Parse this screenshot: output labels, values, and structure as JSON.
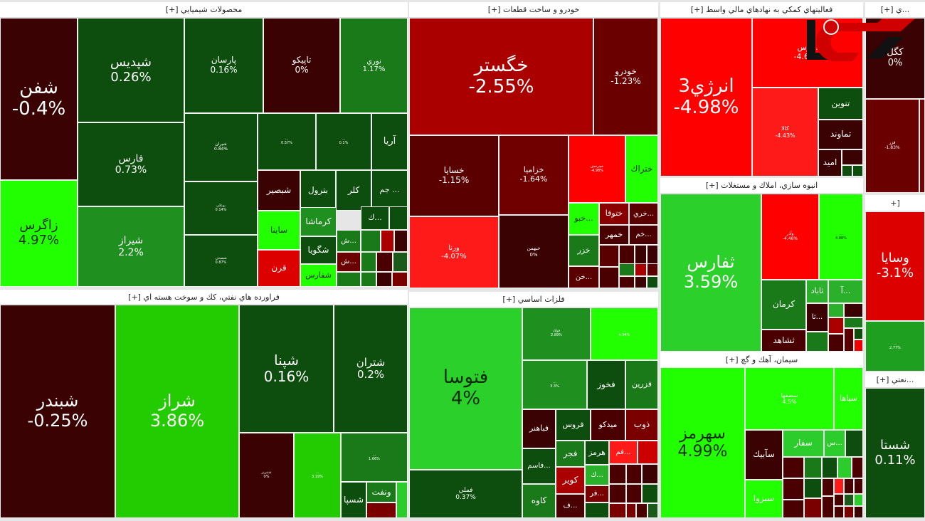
{
  "sectors": [
    {
      "title": "محصولات شيميايي [+]"
    },
    {
      "title": "خودرو و ساخت قطعات [+]"
    },
    {
      "title": "فعاليتهاي كمكي به نهادهاي مالي واسط [+]"
    },
    {
      "title": "انبوه سازي، املاك و مستغلات [+]"
    },
    {
      "title": "سيمان، آهك و گچ [+]"
    },
    {
      "title": "...ي [+]"
    },
    {
      "title": "[+"
    },
    {
      "title": "...نعتي [+]"
    },
    {
      "title": "فراورده هاي نفتي، كك و سوخت هسته اي [+]"
    },
    {
      "title": "فلزات اساسي [+]"
    }
  ],
  "colors": {
    "strong_up": "#22ff00",
    "up": "#1f8f1f",
    "flat_up": "#0d4d0d",
    "flat_down": "#3a0000",
    "down": "#aa0000",
    "strong_down": "#ff0000"
  },
  "tiles": [
    {
      "symbol": "شفن",
      "change": "-0.4%",
      "color": "#3a0202"
    },
    {
      "symbol": "زاگرس",
      "change": "4.97%",
      "color": "#22ff00"
    },
    {
      "symbol": "شپديس",
      "change": "0.26%",
      "color": "#0d4d0d"
    },
    {
      "symbol": "فارس",
      "change": "0.73%",
      "color": "#0d4d0d"
    },
    {
      "symbol": "شيراز",
      "change": "2.2%",
      "color": "#1f8f1f"
    },
    {
      "symbol": "پارسان",
      "change": "0.16%",
      "color": "#0d4d0d"
    },
    {
      "symbol": "تاپيكو",
      "change": "0%",
      "color": "#3a0202"
    },
    {
      "symbol": "نوري",
      "change": "1.17%",
      "color": "#1a7a1a"
    },
    {
      "symbol": "شيران",
      "change": "0.84%",
      "color": "#0d4d0d"
    },
    {
      "symbol": "بوعلي",
      "change": "0.14%",
      "color": "#0d4d0d"
    },
    {
      "symbol": "شصدف",
      "change": "0.87%",
      "color": "#0d4d0d"
    },
    {
      "symbol": "...",
      "change": "0.57%",
      "color": "#0d4d0d"
    },
    {
      "symbol": "...",
      "change": "0.1%",
      "color": "#0d4d0d"
    },
    {
      "symbol": "آريا",
      "change": "",
      "color": "#0d4d0d"
    },
    {
      "symbol": "شبصير",
      "change": "",
      "color": "#3a0202"
    },
    {
      "symbol": "بترول",
      "change": "",
      "color": "#0d4d0d"
    },
    {
      "symbol": "كلر",
      "change": "",
      "color": "#0d4d0d"
    },
    {
      "symbol": "... جم",
      "change": "",
      "color": "#0d4d0d"
    },
    {
      "symbol": "ساينا",
      "change": "",
      "color": "#22ff00"
    },
    {
      "symbol": "قرن",
      "change": "",
      "color": "#dd0000"
    },
    {
      "symbol": "كرماشا",
      "change": "",
      "color": "#1f8f1f"
    },
    {
      "symbol": "شگويا",
      "change": "",
      "color": "#0d4d0d"
    },
    {
      "symbol": "شفارس",
      "change": "",
      "color": "#22ff00"
    },
    {
      "symbol": "...ك",
      "change": "",
      "color": "#0d4d0d"
    },
    {
      "symbol": "...ش",
      "change": "",
      "color": "#1a7a1a"
    },
    {
      "symbol": "...ش",
      "change": "",
      "color": "#6a0000"
    },
    {
      "symbol": "خگستر",
      "change": "-2.55%",
      "color": "#aa0000"
    },
    {
      "symbol": "خودرو",
      "change": "-1.23%",
      "color": "#6a0000"
    },
    {
      "symbol": "خساپا",
      "change": "-1.15%",
      "color": "#5a0000"
    },
    {
      "symbol": "خزاميا",
      "change": "-1.64%",
      "color": "#700000"
    },
    {
      "symbol": "ورنا",
      "change": "-4.07%",
      "color": "#ff1a1a"
    },
    {
      "symbol": "خبهمن",
      "change": "0%",
      "color": "#3a0202"
    },
    {
      "symbol": "خچرخش",
      "change": "-4.98%",
      "color": "#ff0000"
    },
    {
      "symbol": "ختراك",
      "change": "",
      "color": "#22ff00"
    },
    {
      "symbol": "...خبو",
      "change": "",
      "color": "#22ff00"
    },
    {
      "symbol": "خزر",
      "change": "",
      "color": "#1a7a1a"
    },
    {
      "symbol": "...خن",
      "change": "",
      "color": "#5a0000"
    },
    {
      "symbol": "ختوقا",
      "change": "",
      "color": "#8a0000"
    },
    {
      "symbol": "...خري",
      "change": "",
      "color": "#5a0000"
    },
    {
      "symbol": "خمهر",
      "change": "",
      "color": "#4a0000"
    },
    {
      "symbol": "...خم",
      "change": "",
      "color": "#4a0000"
    },
    {
      "symbol": "انرژي3",
      "change": "-4.98%",
      "color": "#ff0000"
    },
    {
      "symbol": "...رس",
      "change": "-4.63%",
      "color": "#ff0000"
    },
    {
      "symbol": "كالا",
      "change": "-4.43%",
      "color": "#ff1a1a"
    },
    {
      "symbol": "تنوين",
      "change": "",
      "color": "#0d4d0d"
    },
    {
      "symbol": "تماوند",
      "change": "",
      "color": "#3a0202"
    },
    {
      "symbol": "اميد",
      "change": "",
      "color": "#3a0202"
    },
    {
      "symbol": "ثفارس",
      "change": "3.59%",
      "color": "#2bd02b"
    },
    {
      "symbol": "وآذر",
      "change": "-4.46%",
      "color": "#ff0000"
    },
    {
      "symbol": "...",
      "change": "4.88%",
      "color": "#22ff00"
    },
    {
      "symbol": "كرمان",
      "change": "",
      "color": "#1a7a1a"
    },
    {
      "symbol": "ثشاهد",
      "change": "",
      "color": "#4a0000"
    },
    {
      "symbol": "ثاباد",
      "change": "",
      "color": "#2bb02b"
    },
    {
      "symbol": "...آ",
      "change": "",
      "color": "#2bb02b"
    },
    {
      "symbol": "...ثا",
      "change": "",
      "color": "#3a0202"
    },
    {
      "symbol": "سهرمز",
      "change": "4.99%",
      "color": "#22ff00"
    },
    {
      "symbol": "سصفها",
      "change": "4.5%",
      "color": "#22ff00"
    },
    {
      "symbol": "سپاها",
      "change": "",
      "color": "#22ff00"
    },
    {
      "symbol": "سآبيك",
      "change": "",
      "color": "#3a0202"
    },
    {
      "symbol": "سبزوا",
      "change": "",
      "color": "#22ff00"
    },
    {
      "symbol": "سفار",
      "change": "",
      "color": "#2bcc2b"
    },
    {
      "symbol": "...س",
      "change": "",
      "color": "#2bcc2b"
    },
    {
      "symbol": "كگل",
      "change": "0%",
      "color": "#3a0202"
    },
    {
      "symbol": "فزر",
      "change": "-1.83%",
      "color": "#6a0000"
    },
    {
      "symbol": "وسايا",
      "change": "-3.1%",
      "color": "#dd0000"
    },
    {
      "symbol": "...",
      "change": "2.77%",
      "color": "#1f9f1f"
    },
    {
      "symbol": "شستا",
      "change": "0.11%",
      "color": "#0d4d0d"
    },
    {
      "symbol": "شبندر",
      "change": "-0.25%",
      "color": "#3a0202"
    },
    {
      "symbol": "شراز",
      "change": "3.86%",
      "color": "#22cc00"
    },
    {
      "symbol": "شپنا",
      "change": "0.16%",
      "color": "#0d4d0d"
    },
    {
      "symbol": "شتران",
      "change": "0.2%",
      "color": "#0d4d0d"
    },
    {
      "symbol": "شتبريز",
      "change": "0%",
      "color": "#3a0202"
    },
    {
      "symbol": "...",
      "change": "3.19%",
      "color": "#22cc00"
    },
    {
      "symbol": "...",
      "change": "1.66%",
      "color": "#1a7a1a"
    },
    {
      "symbol": "شسپا",
      "change": "",
      "color": "#0d4d0d"
    },
    {
      "symbol": "ونفت",
      "change": "",
      "color": "#1a7a1a"
    },
    {
      "symbol": "فتوسا",
      "change": "4%",
      "color": "#2bd02b"
    },
    {
      "symbol": "فملي",
      "change": "0.37%",
      "color": "#0d4d0d"
    },
    {
      "symbol": "فولاد",
      "change": "2.89%",
      "color": "#1f8f1f"
    },
    {
      "symbol": "...",
      "change": "4.94%",
      "color": "#22ff00"
    },
    {
      "symbol": "...",
      "change": "3.3%",
      "color": "#1f8f1f"
    },
    {
      "symbol": "فخوز",
      "change": "",
      "color": "#0d4d0d"
    },
    {
      "symbol": "فزرين",
      "change": "",
      "color": "#1a7a1a"
    },
    {
      "symbol": "فباهنر",
      "change": "",
      "color": "#3a0202"
    },
    {
      "symbol": "فروس",
      "change": "",
      "color": "#0d4d0d"
    },
    {
      "symbol": "ميدكو",
      "change": "",
      "color": "#4a0000"
    },
    {
      "symbol": "ذوب",
      "change": "",
      "color": "#7a0000"
    },
    {
      "symbol": "...فاسم",
      "change": "",
      "color": "#0d4d0d"
    },
    {
      "symbol": "كاوه",
      "change": "",
      "color": "#1a7a1a"
    },
    {
      "symbol": "فجر",
      "change": "",
      "color": "#1a7a1a"
    },
    {
      "symbol": "هرمز",
      "change": "",
      "color": "#0d4d0d"
    },
    {
      "symbol": "...فم",
      "change": "",
      "color": "#ff1a1a"
    },
    {
      "symbol": "كوير",
      "change": "",
      "color": "#aa0000"
    },
    {
      "symbol": "...ف",
      "change": "",
      "color": "#4a0000"
    },
    {
      "symbol": "...ك",
      "change": "",
      "color": "#2bb02b"
    },
    {
      "symbol": "...فر",
      "change": "",
      "color": "#7a0000"
    }
  ]
}
